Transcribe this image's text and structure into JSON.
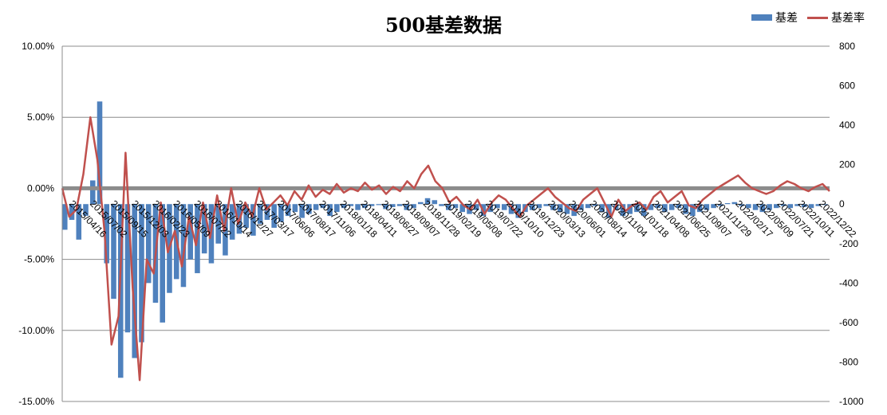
{
  "chart_data": {
    "type": "bar",
    "title": "500基差数据",
    "legend": {
      "placement": "top-right",
      "items": [
        {
          "name": "基差",
          "kind": "bar",
          "color": "#4f81bd"
        },
        {
          "name": "基差率",
          "kind": "line",
          "color": "#c0504d"
        }
      ]
    },
    "grid": true,
    "left_axis": {
      "ylim": [
        -0.15,
        0.1
      ],
      "ticks": [
        0.1,
        0.05,
        0.0,
        -0.05,
        -0.1,
        -0.15
      ],
      "tick_labels": [
        "10.00%",
        "5.00%",
        "0.00%",
        "-5.00%",
        "-10.00%",
        "-15.00%"
      ]
    },
    "right_axis": {
      "ylim": [
        -1000,
        800
      ],
      "ticks": [
        800,
        600,
        400,
        200,
        0,
        -200,
        -400,
        -600,
        -800,
        -1000
      ],
      "tick_labels": [
        "800",
        "600",
        "400",
        "200",
        "0",
        "-200",
        "-400",
        "-600",
        "-800",
        "-1000"
      ]
    },
    "x_tick_labels": [
      "2015/04/16",
      "2015/07/02",
      "2015/09/15",
      "2015/12/03",
      "2016/02/23",
      "2016/05/09",
      "2016/07/22",
      "2016/10/14",
      "2016/12/27",
      "2017/03/17",
      "2017/06/06",
      "2017/08/17",
      "2017/11/06",
      "2018/01/18",
      "2018/04/11",
      "2018/06/27",
      "2018/09/07",
      "2018/11/28",
      "2019/02/19",
      "2019/05/08",
      "2019/07/22",
      "2019/10/10",
      "2019/12/23",
      "2020/03/13",
      "2020/06/01",
      "2020/08/14",
      "2020/11/04",
      "2021/01/18",
      "2021/04/08",
      "2021/06/25",
      "2021/09/07",
      "2021/11/29",
      "2022/02/17",
      "2022/05/09",
      "2022/07/21",
      "2022/10/11",
      "2022/12/22"
    ],
    "series": [
      {
        "name": "基差",
        "axis": "right",
        "values": [
          -130,
          -80,
          -180,
          -60,
          120,
          520,
          -300,
          -480,
          -880,
          -650,
          -780,
          -700,
          -400,
          -500,
          -600,
          -450,
          -380,
          -420,
          -280,
          -350,
          -250,
          -300,
          -200,
          -260,
          -180,
          -150,
          -120,
          -160,
          -100,
          -80,
          -120,
          -90,
          -60,
          -40,
          -70,
          -50,
          -30,
          -20,
          -60,
          -40,
          -20,
          -10,
          -30,
          -20,
          -10,
          -5,
          -25,
          -15,
          -10,
          -30,
          -20,
          10,
          30,
          20,
          -10,
          -30,
          -20,
          -40,
          -50,
          -30,
          -60,
          -40,
          -20,
          -30,
          -50,
          -70,
          -40,
          -30,
          -20,
          -10,
          -30,
          -40,
          -50,
          -60,
          -30,
          -20,
          -10,
          -40,
          -70,
          -30,
          -60,
          -50,
          -40,
          -60,
          -30,
          -20,
          -40,
          -30,
          -20,
          -50,
          -60,
          -40,
          -30,
          -20,
          -10,
          5,
          10,
          -10,
          -20,
          -30,
          -40,
          -30,
          -20,
          -10,
          -20,
          -10,
          -15,
          -20,
          -10,
          -5
        ]
      },
      {
        "name": "基差率",
        "axis": "left",
        "values": [
          0.0,
          -0.02,
          -0.015,
          0.01,
          0.05,
          0.02,
          -0.03,
          -0.11,
          -0.09,
          0.025,
          -0.07,
          -0.135,
          -0.05,
          -0.06,
          -0.01,
          -0.045,
          -0.03,
          -0.055,
          -0.02,
          -0.04,
          -0.01,
          -0.035,
          -0.005,
          -0.03,
          0.0,
          -0.025,
          -0.01,
          -0.02,
          0.0,
          -0.015,
          -0.01,
          -0.005,
          -0.012,
          -0.002,
          -0.008,
          0.002,
          -0.006,
          -0.001,
          -0.004,
          0.003,
          -0.003,
          0.0,
          -0.002,
          0.004,
          -0.001,
          0.002,
          -0.004,
          0.001,
          -0.002,
          0.005,
          0.0,
          0.01,
          0.016,
          0.005,
          0.0,
          -0.01,
          -0.006,
          -0.012,
          -0.015,
          -0.008,
          -0.018,
          -0.01,
          -0.005,
          -0.008,
          -0.014,
          -0.02,
          -0.012,
          -0.008,
          -0.004,
          0.0,
          -0.006,
          -0.01,
          -0.014,
          -0.016,
          -0.008,
          -0.004,
          0.0,
          -0.01,
          -0.02,
          -0.008,
          -0.016,
          -0.012,
          -0.01,
          -0.015,
          -0.006,
          -0.002,
          -0.01,
          -0.006,
          -0.002,
          -0.012,
          -0.014,
          -0.008,
          -0.004,
          0.0,
          0.003,
          0.006,
          0.009,
          0.004,
          0.0,
          -0.002,
          -0.004,
          -0.002,
          0.002,
          0.005,
          0.003,
          0.0,
          -0.002,
          0.001,
          0.003,
          -0.002
        ]
      }
    ]
  }
}
